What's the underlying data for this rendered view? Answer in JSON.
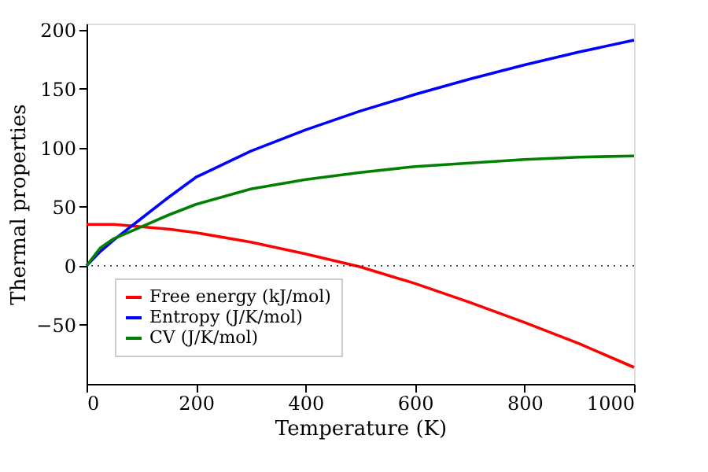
{
  "chart_data": {
    "type": "line",
    "xlabel": "Temperature (K)",
    "ylabel": "Thermal properties",
    "x": [
      0,
      25,
      50,
      100,
      150,
      200,
      300,
      400,
      500,
      600,
      700,
      800,
      900,
      1000
    ],
    "series": [
      {
        "name": "Free energy (kJ/mol)",
        "color": "#ff0000",
        "values": [
          35,
          35,
          35,
          33,
          31,
          28,
          20,
          10,
          -1,
          -15,
          -31,
          -48,
          -66,
          -86
        ]
      },
      {
        "name": "Entropy (J/K/mol)",
        "color": "#0000ff",
        "values": [
          0,
          12,
          22,
          40,
          58,
          75,
          97,
          115,
          131,
          145,
          158,
          170,
          181,
          191
        ]
      },
      {
        "name": "CV (J/K/mol)",
        "color": "#008000",
        "values": [
          0,
          15,
          23,
          33,
          43,
          52,
          65,
          73,
          79,
          84,
          87,
          90,
          92,
          93
        ]
      }
    ],
    "xlim": [
      0,
      1000
    ],
    "xticks": [
      0,
      200,
      400,
      600,
      800,
      1000
    ],
    "ylim": [
      -100,
      205
    ],
    "yticks": [
      {
        "value": -50,
        "label": "−50"
      },
      0,
      50,
      100,
      150,
      200
    ],
    "ref_lines": [
      {
        "axis": "y",
        "value": 0,
        "color": "#000000",
        "line_style": "dotted"
      }
    ],
    "legend": "bottom left",
    "marker": "none",
    "line_style": "solid",
    "grid": false
  }
}
